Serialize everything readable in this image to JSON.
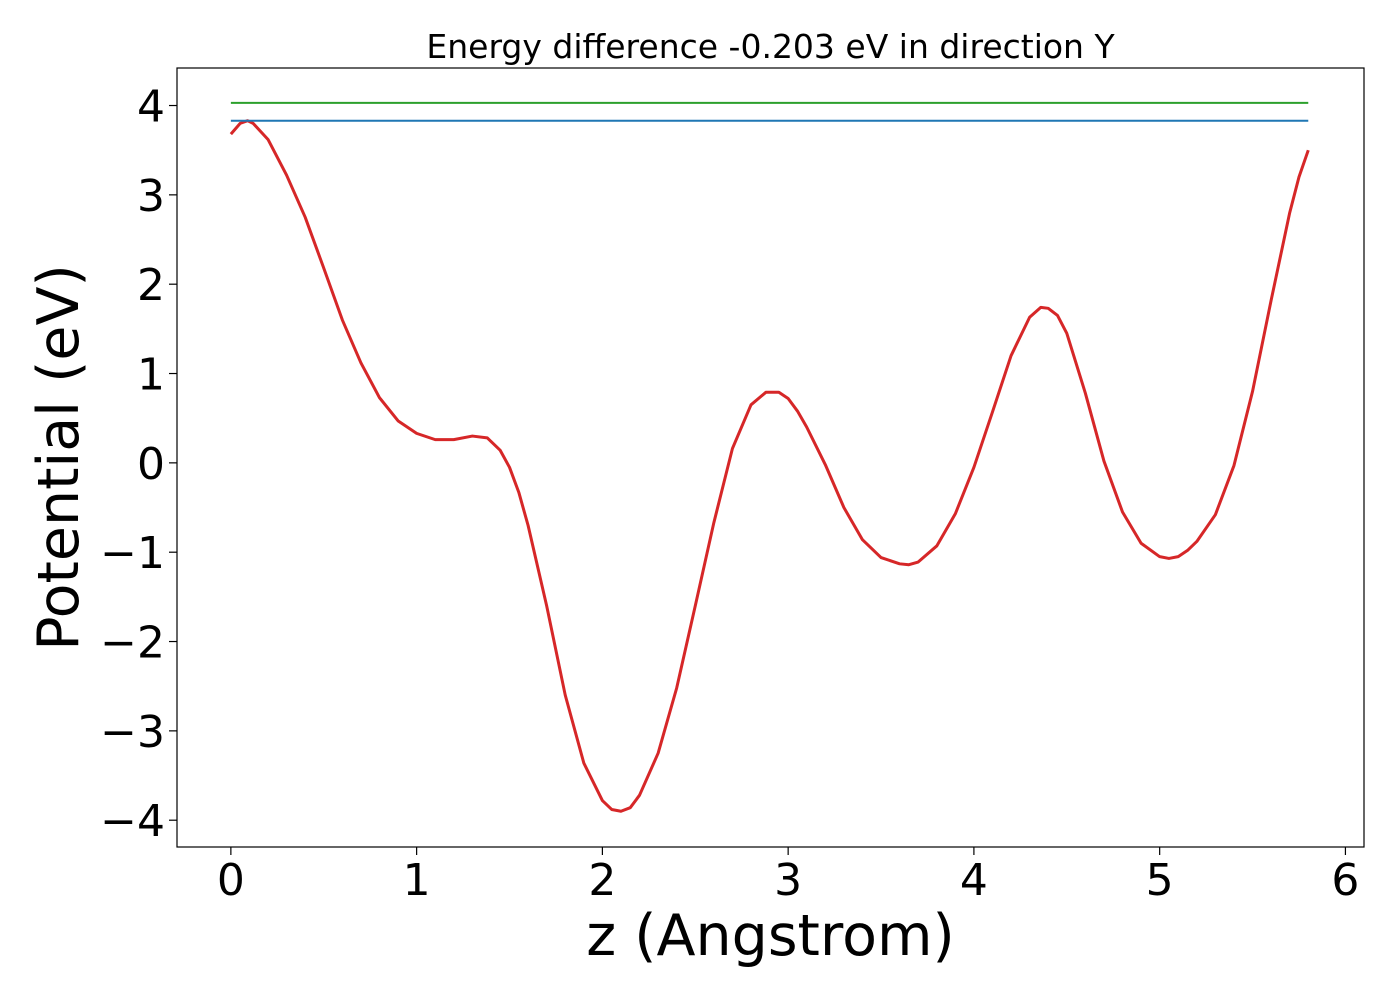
{
  "chart_data": {
    "type": "line",
    "title": "Energy difference -0.203 eV in direction Y",
    "xlabel": "z (Angstrom)",
    "ylabel": "Potential (eV)",
    "xlim": [
      -0.29,
      6.1
    ],
    "ylim": [
      -4.3,
      4.42
    ],
    "xticks": [
      0,
      1,
      2,
      3,
      4,
      5,
      6
    ],
    "xtick_labels": [
      "0",
      "1",
      "2",
      "3",
      "4",
      "5",
      "6"
    ],
    "yticks": [
      -4,
      -3,
      -2,
      -1,
      0,
      1,
      2,
      3,
      4
    ],
    "ytick_labels": [
      "−4",
      "−3",
      "−2",
      "−1",
      "0",
      "1",
      "2",
      "3",
      "4"
    ],
    "grid": false,
    "legend": "none",
    "series": [
      {
        "color": "#d62728",
        "x": [
          0.0,
          0.05,
          0.09,
          0.12,
          0.2,
          0.3,
          0.4,
          0.5,
          0.6,
          0.7,
          0.8,
          0.9,
          1.0,
          1.1,
          1.2,
          1.3,
          1.38,
          1.45,
          1.5,
          1.55,
          1.6,
          1.7,
          1.8,
          1.9,
          2.0,
          2.05,
          2.1,
          2.15,
          2.2,
          2.3,
          2.4,
          2.5,
          2.6,
          2.7,
          2.8,
          2.88,
          2.95,
          3.0,
          3.05,
          3.1,
          3.2,
          3.3,
          3.4,
          3.5,
          3.6,
          3.65,
          3.7,
          3.8,
          3.9,
          4.0,
          4.1,
          4.2,
          4.3,
          4.36,
          4.4,
          4.45,
          4.5,
          4.6,
          4.7,
          4.8,
          4.9,
          5.0,
          5.05,
          5.1,
          5.15,
          5.2,
          5.3,
          5.4,
          5.5,
          5.6,
          5.7,
          5.75,
          5.8
        ],
        "y": [
          3.68,
          3.8,
          3.83,
          3.8,
          3.62,
          3.22,
          2.75,
          2.18,
          1.6,
          1.12,
          0.73,
          0.47,
          0.33,
          0.26,
          0.26,
          0.3,
          0.28,
          0.14,
          -0.05,
          -0.33,
          -0.7,
          -1.6,
          -2.6,
          -3.36,
          -3.78,
          -3.88,
          -3.9,
          -3.86,
          -3.72,
          -3.25,
          -2.52,
          -1.6,
          -0.67,
          0.16,
          0.65,
          0.79,
          0.79,
          0.72,
          0.58,
          0.4,
          -0.02,
          -0.5,
          -0.86,
          -1.06,
          -1.13,
          -1.14,
          -1.11,
          -0.93,
          -0.57,
          -0.05,
          0.57,
          1.2,
          1.63,
          1.74,
          1.73,
          1.65,
          1.45,
          0.78,
          0.02,
          -0.55,
          -0.9,
          -1.05,
          -1.07,
          -1.05,
          -0.98,
          -0.88,
          -0.58,
          -0.03,
          0.8,
          1.82,
          2.8,
          3.2,
          3.5
        ]
      },
      {
        "color": "#1f77b4",
        "x": [
          0.0,
          5.8
        ],
        "y": [
          3.83,
          3.83
        ]
      },
      {
        "color": "#2ca02c",
        "x": [
          0.0,
          5.8
        ],
        "y": [
          4.03,
          4.03
        ]
      }
    ]
  }
}
